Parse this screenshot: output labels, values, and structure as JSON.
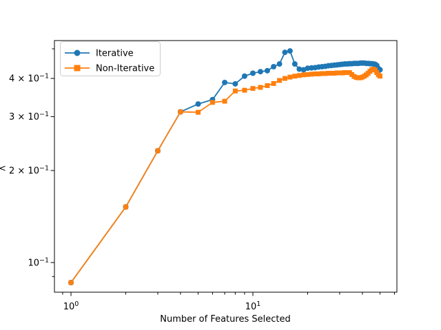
{
  "chart_data": {
    "type": "line",
    "title": "",
    "xlabel": "Number of Features Selected",
    "ylabel_fragment": "<",
    "xscale": "log",
    "yscale": "log",
    "xlim": [
      0.811,
      61.9
    ],
    "ylim": [
      0.08,
      0.532
    ],
    "grid": false,
    "legend_position": "upper left",
    "x": [
      1,
      2,
      3,
      4,
      5,
      6,
      7,
      8,
      9,
      10,
      11,
      12,
      13,
      14,
      15,
      16,
      17,
      18,
      19,
      20,
      21,
      22,
      23,
      24,
      25,
      26,
      27,
      28,
      29,
      30,
      31,
      32,
      33,
      34,
      35,
      36,
      37,
      38,
      39,
      40,
      41,
      42,
      43,
      44,
      45,
      46,
      47,
      48,
      49,
      50
    ],
    "series": [
      {
        "name": "Iterative",
        "color": "#1f77b4",
        "marker": "circle",
        "values": [
          0.086,
          0.152,
          0.232,
          0.311,
          0.33,
          0.341,
          0.388,
          0.384,
          0.407,
          0.416,
          0.421,
          0.424,
          0.437,
          0.446,
          0.487,
          0.492,
          0.446,
          0.429,
          0.427,
          0.432,
          0.433,
          0.434,
          0.436,
          0.437,
          0.438,
          0.44,
          0.441,
          0.442,
          0.443,
          0.444,
          0.445,
          0.446,
          0.446,
          0.447,
          0.447,
          0.448,
          0.448,
          0.448,
          0.449,
          0.449,
          0.449,
          0.448,
          0.448,
          0.447,
          0.447,
          0.446,
          0.445,
          0.441,
          0.431,
          0.427
        ]
      },
      {
        "name": "Non-Iterative",
        "color": "#ff7f0e",
        "marker": "square",
        "values": [
          0.086,
          0.152,
          0.232,
          0.311,
          0.31,
          0.334,
          0.337,
          0.364,
          0.366,
          0.371,
          0.374,
          0.379,
          0.385,
          0.394,
          0.4,
          0.404,
          0.407,
          0.409,
          0.411,
          0.412,
          0.413,
          0.414,
          0.414,
          0.415,
          0.415,
          0.416,
          0.416,
          0.416,
          0.417,
          0.417,
          0.417,
          0.418,
          0.418,
          0.418,
          0.412,
          0.406,
          0.403,
          0.402,
          0.402,
          0.404,
          0.407,
          0.411,
          0.416,
          0.422,
          0.427,
          0.429,
          0.426,
          0.418,
          0.411,
          0.407
        ]
      }
    ],
    "x_ticks": [
      {
        "v": 1,
        "base": "10",
        "exp": "0"
      },
      {
        "v": 10,
        "base": "10",
        "exp": "1"
      }
    ],
    "x_minor_ticks": [
      0.9,
      2,
      3,
      4,
      5,
      6,
      7,
      8,
      9,
      20,
      30,
      40,
      50,
      60
    ],
    "y_ticks": [
      {
        "v": 0.4,
        "pre": "4 × ",
        "base": "10",
        "exp": "−1"
      },
      {
        "v": 0.3,
        "pre": "3 × ",
        "base": "10",
        "exp": "−1"
      },
      {
        "v": 0.2,
        "pre": "2 × ",
        "base": "10",
        "exp": "−1"
      },
      {
        "v": 0.1,
        "pre": "",
        "base": "10",
        "exp": "−1"
      }
    ],
    "y_minor_ticks": [
      0.5,
      0.09
    ]
  }
}
